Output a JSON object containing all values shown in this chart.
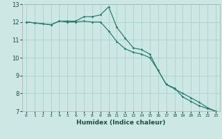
{
  "xlabel": "Humidex (Indice chaleur)",
  "bg_color": "#cce8e4",
  "grid_color": "#aaccc8",
  "line_color": "#2e7d6e",
  "xlim": [
    -0.5,
    23.5
  ],
  "ylim": [
    7,
    13
  ],
  "xticks": [
    0,
    1,
    2,
    3,
    4,
    5,
    6,
    7,
    8,
    9,
    10,
    11,
    12,
    13,
    14,
    15,
    16,
    17,
    18,
    19,
    20,
    21,
    22,
    23
  ],
  "yticks": [
    7,
    8,
    9,
    10,
    11,
    12,
    13
  ],
  "line1_x": [
    0,
    1,
    2,
    3,
    4,
    5,
    6,
    7,
    8,
    9,
    10,
    11,
    12,
    13,
    14,
    15,
    16,
    17,
    18,
    19,
    20,
    21,
    22,
    23
  ],
  "line1_y": [
    12.0,
    11.95,
    11.9,
    11.85,
    12.05,
    12.0,
    12.0,
    12.05,
    12.0,
    12.0,
    11.5,
    10.9,
    10.5,
    10.3,
    10.2,
    10.0,
    9.3,
    8.5,
    8.25,
    8.0,
    7.75,
    7.5,
    7.2,
    7.0
  ],
  "line2_x": [
    0,
    1,
    2,
    3,
    4,
    5,
    6,
    7,
    8,
    9,
    10,
    11,
    12,
    13,
    14,
    15,
    16,
    17,
    18,
    19,
    20,
    21,
    22,
    23
  ],
  "line2_y": [
    12.0,
    11.95,
    11.9,
    11.85,
    12.05,
    12.05,
    12.05,
    12.3,
    12.3,
    12.4,
    12.85,
    11.7,
    11.1,
    10.55,
    10.45,
    10.2,
    9.3,
    8.5,
    8.3,
    7.8,
    7.55,
    7.3,
    7.15,
    7.0
  ]
}
